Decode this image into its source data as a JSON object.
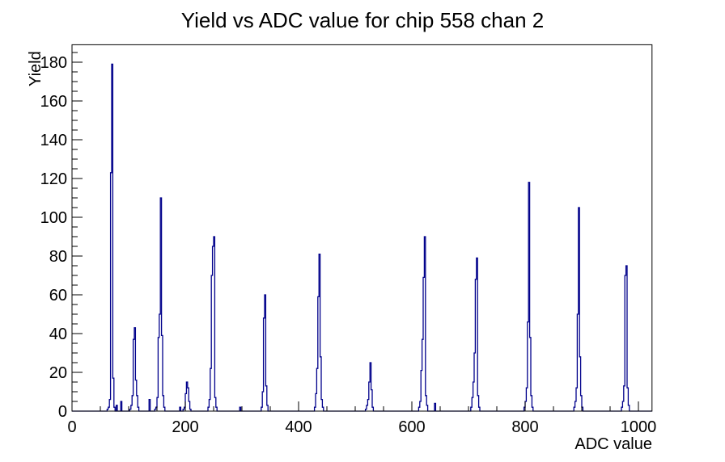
{
  "chart_data": {
    "type": "bar",
    "subtype": "histogram-step-outline",
    "title": "Yield vs ADC value for chip 558 chan 2",
    "xlabel": "ADC value",
    "ylabel": "Yield",
    "xlim": [
      0,
      1024
    ],
    "ylim": [
      0,
      189
    ],
    "grid": false,
    "legend": null,
    "x_major_tick_step": 200,
    "x_minor_tick_step": 50,
    "y_major_tick_step": 20,
    "y_minor_tick_step": 5,
    "x_tick_labels": [
      "0",
      "200",
      "400",
      "600",
      "800",
      "1000"
    ],
    "y_tick_labels": [
      "0",
      "20",
      "40",
      "60",
      "80",
      "100",
      "120",
      "140",
      "160",
      "180"
    ],
    "line_color": "#00008b",
    "axis_color": "#000000",
    "background_color": "#ffffff",
    "bin_width": 2,
    "peaks": [
      {
        "adc": 70,
        "yield": 179
      },
      {
        "adc": 110,
        "yield": 43
      },
      {
        "adc": 156,
        "yield": 110
      },
      {
        "adc": 202,
        "yield": 15
      },
      {
        "adc": 250,
        "yield": 90
      },
      {
        "adc": 340,
        "yield": 60
      },
      {
        "adc": 436,
        "yield": 81
      },
      {
        "adc": 526,
        "yield": 25
      },
      {
        "adc": 622,
        "yield": 90
      },
      {
        "adc": 714,
        "yield": 79
      },
      {
        "adc": 806,
        "yield": 118
      },
      {
        "adc": 894,
        "yield": 105
      },
      {
        "adc": 978,
        "yield": 75
      }
    ],
    "bins": [
      [
        62,
        1
      ],
      [
        64,
        2
      ],
      [
        66,
        6
      ],
      [
        68,
        123
      ],
      [
        70,
        179
      ],
      [
        72,
        17
      ],
      [
        74,
        2
      ],
      [
        78,
        3
      ],
      [
        86,
        5
      ],
      [
        102,
        1
      ],
      [
        104,
        3
      ],
      [
        106,
        8
      ],
      [
        108,
        37
      ],
      [
        110,
        43
      ],
      [
        112,
        16
      ],
      [
        114,
        8
      ],
      [
        116,
        2
      ],
      [
        136,
        6
      ],
      [
        146,
        1
      ],
      [
        148,
        2
      ],
      [
        150,
        7
      ],
      [
        152,
        38
      ],
      [
        154,
        50
      ],
      [
        156,
        110
      ],
      [
        158,
        39
      ],
      [
        160,
        8
      ],
      [
        162,
        2
      ],
      [
        190,
        2
      ],
      [
        196,
        1
      ],
      [
        198,
        2
      ],
      [
        200,
        9
      ],
      [
        202,
        15
      ],
      [
        204,
        12
      ],
      [
        206,
        5
      ],
      [
        208,
        1
      ],
      [
        240,
        2
      ],
      [
        242,
        6
      ],
      [
        244,
        22
      ],
      [
        246,
        70
      ],
      [
        248,
        85
      ],
      [
        250,
        90
      ],
      [
        252,
        7
      ],
      [
        254,
        2
      ],
      [
        296,
        2
      ],
      [
        334,
        2
      ],
      [
        336,
        10
      ],
      [
        338,
        48
      ],
      [
        340,
        60
      ],
      [
        342,
        13
      ],
      [
        344,
        3
      ],
      [
        428,
        2
      ],
      [
        430,
        9
      ],
      [
        432,
        22
      ],
      [
        434,
        59
      ],
      [
        436,
        81
      ],
      [
        438,
        28
      ],
      [
        440,
        6
      ],
      [
        442,
        2
      ],
      [
        518,
        1
      ],
      [
        520,
        3
      ],
      [
        522,
        6
      ],
      [
        524,
        15
      ],
      [
        526,
        25
      ],
      [
        528,
        11
      ],
      [
        530,
        2
      ],
      [
        612,
        2
      ],
      [
        614,
        5
      ],
      [
        616,
        21
      ],
      [
        618,
        37
      ],
      [
        620,
        69
      ],
      [
        622,
        90
      ],
      [
        624,
        8
      ],
      [
        626,
        3
      ],
      [
        640,
        4
      ],
      [
        704,
        2
      ],
      [
        706,
        7
      ],
      [
        708,
        15
      ],
      [
        710,
        30
      ],
      [
        712,
        68
      ],
      [
        714,
        79
      ],
      [
        716,
        8
      ],
      [
        718,
        2
      ],
      [
        798,
        2
      ],
      [
        800,
        5
      ],
      [
        802,
        12
      ],
      [
        804,
        46
      ],
      [
        806,
        118
      ],
      [
        808,
        38
      ],
      [
        810,
        8
      ],
      [
        812,
        2
      ],
      [
        886,
        2
      ],
      [
        888,
        5
      ],
      [
        890,
        12
      ],
      [
        892,
        50
      ],
      [
        894,
        105
      ],
      [
        896,
        28
      ],
      [
        898,
        8
      ],
      [
        900,
        2
      ],
      [
        970,
        2
      ],
      [
        972,
        5
      ],
      [
        974,
        13
      ],
      [
        976,
        70
      ],
      [
        978,
        75
      ],
      [
        980,
        12
      ],
      [
        982,
        3
      ]
    ]
  }
}
